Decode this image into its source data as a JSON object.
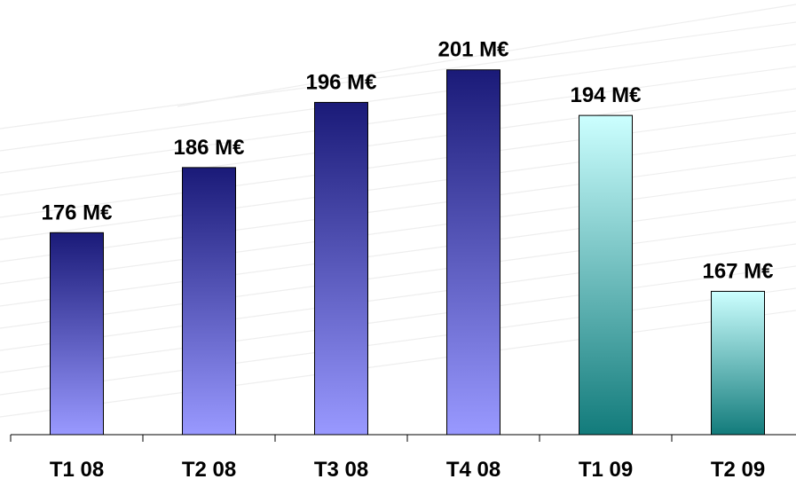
{
  "chart_data": {
    "type": "bar",
    "categories": [
      "T1 08",
      "T2 08",
      "T3 08",
      "T4 08",
      "T1 09",
      "T2 09"
    ],
    "values": [
      176,
      186,
      196,
      201,
      194,
      167
    ],
    "value_labels": [
      "176 M€",
      "186 M€",
      "196 M€",
      "201 M€",
      "194 M€",
      "167 M€"
    ],
    "title": "",
    "xlabel": "",
    "ylabel": "",
    "ylim": [
      145,
      206
    ],
    "grid": false,
    "legend": "none",
    "colors": {
      "series_2008_top": "#1a1a78",
      "series_2008_bottom": "#9999ff",
      "series_2009_top": "#ccffff",
      "series_2009_bottom": "#127b7b"
    }
  }
}
